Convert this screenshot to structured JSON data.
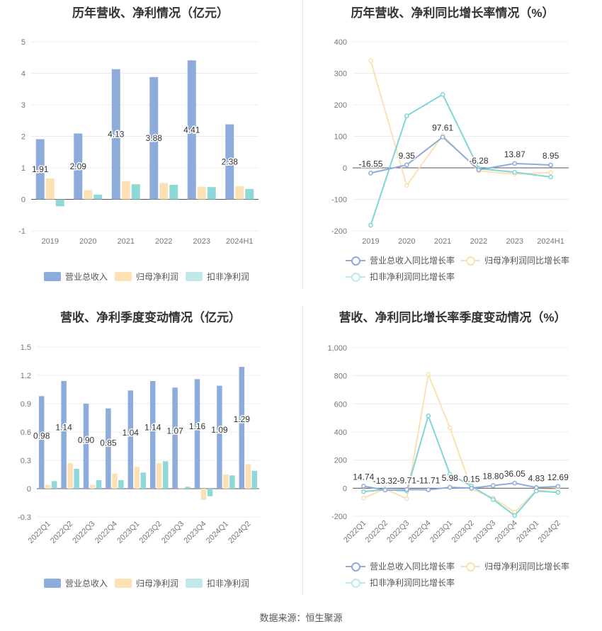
{
  "footer": {
    "source": "数据来源：恒生聚源"
  },
  "colors": {
    "revenue": "#8eacdb",
    "netprofit": "#fde0b3",
    "deducted": "#8fd8d8",
    "revenue_line": "#8eacdb",
    "netprofit_line": "#fde0b3",
    "deducted_line": "#7fd6d6"
  },
  "chart_data": [
    {
      "id": "annual_amount",
      "type": "bar",
      "title": "历年营收、净利情况（亿元）",
      "categories": [
        "2019",
        "2020",
        "2021",
        "2022",
        "2023",
        "2024H1"
      ],
      "ylim": [
        -1,
        5
      ],
      "yticks": [
        "-1",
        "0",
        "1",
        "2",
        "3",
        "4",
        "5"
      ],
      "series": [
        {
          "name": "营业总收入",
          "values": [
            1.91,
            2.09,
            4.13,
            3.88,
            4.41,
            2.38
          ],
          "labels": [
            "1.91",
            "2.09",
            "4.13",
            "3.88",
            "4.41",
            "2.38"
          ]
        },
        {
          "name": "归母净利润",
          "values": [
            0.66,
            0.29,
            0.58,
            0.52,
            0.4,
            0.42
          ]
        },
        {
          "name": "扣非净利润",
          "values": [
            -0.22,
            0.15,
            0.48,
            0.46,
            0.39,
            0.33
          ]
        }
      ],
      "legend": "bottom",
      "grid": true
    },
    {
      "id": "annual_growth",
      "type": "line",
      "title": "历年营收、净利同比增长率情况（%）",
      "categories": [
        "2019",
        "2020",
        "2021",
        "2022",
        "2023",
        "2024H1"
      ],
      "ylim": [
        -200,
        400
      ],
      "yticks": [
        "-200",
        "-100",
        "0",
        "100",
        "200",
        "300",
        "400"
      ],
      "series": [
        {
          "name": "营业总收入同比增长率",
          "values": [
            -16.55,
            9.35,
            97.61,
            -6.28,
            13.87,
            8.95
          ],
          "labels": [
            "-16.55",
            "9.35",
            "97.61",
            "-6.28",
            "13.87",
            "8.95"
          ]
        },
        {
          "name": "归母净利润同比增长率",
          "values": [
            340,
            -56,
            103,
            -10,
            -20,
            -15
          ]
        },
        {
          "name": "扣非净利润同比增长率",
          "values": [
            -182,
            165,
            233,
            -2,
            -14,
            -29
          ]
        }
      ],
      "legend": "bottom",
      "grid": true
    },
    {
      "id": "quarter_amount",
      "type": "bar",
      "title": "营收、净利季度变动情况（亿元）",
      "categories": [
        "2022Q1",
        "2022Q2",
        "2022Q3",
        "2022Q4",
        "2023Q1",
        "2023Q2",
        "2023Q3",
        "2023Q4",
        "2024Q1",
        "2024Q2"
      ],
      "ylim": [
        -0.3,
        1.5
      ],
      "yticks": [
        "-0.3",
        "0",
        "0.3",
        "0.6",
        "0.9",
        "1.2",
        "1.5"
      ],
      "series": [
        {
          "name": "营业总收入",
          "values": [
            0.98,
            1.14,
            0.9,
            0.85,
            1.04,
            1.14,
            1.07,
            1.16,
            1.09,
            1.29
          ],
          "labels": [
            "0.98",
            "1.14",
            "0.90",
            "0.85",
            "1.04",
            "1.14",
            "1.07",
            "1.16",
            "1.09",
            "1.29"
          ]
        },
        {
          "name": "归母净利润",
          "values": [
            0.04,
            0.27,
            0.04,
            0.16,
            0.23,
            0.27,
            0.01,
            -0.12,
            0.15,
            0.26
          ]
        },
        {
          "name": "扣非净利润",
          "values": [
            0.08,
            0.21,
            0.09,
            0.09,
            0.17,
            0.29,
            0.02,
            -0.08,
            0.14,
            0.19
          ]
        }
      ],
      "legend": "bottom",
      "grid": true
    },
    {
      "id": "quarter_growth",
      "type": "line",
      "title": "营收、净利同比增长率季度变动情况（%）",
      "categories": [
        "2022Q1",
        "2022Q2",
        "2022Q3",
        "2022Q4",
        "2023Q1",
        "2023Q2",
        "2023Q3",
        "2023Q4",
        "2024Q1",
        "2024Q2"
      ],
      "ylim": [
        -200,
        1000
      ],
      "yticks": [
        "-200",
        "0",
        "200",
        "400",
        "600",
        "800",
        "1,000"
      ],
      "series": [
        {
          "name": "营业总收入同比增长率",
          "values": [
            14.74,
            -13.32,
            -9.71,
            -11.71,
            5.98,
            0.15,
            18.8,
            36.05,
            4.83,
            12.69
          ],
          "labels": [
            "14.74",
            "-13.32",
            "-9.71",
            "-11.71",
            "5.98",
            "0.15",
            "18.80",
            "36.05",
            "4.83",
            "12.69"
          ]
        },
        {
          "name": "归母净利润同比增长率",
          "values": [
            -70,
            -5,
            -75,
            810,
            430,
            -5,
            -70,
            -170,
            -15,
            -5
          ]
        },
        {
          "name": "扣非净利润同比增长率",
          "values": [
            -25,
            -10,
            -20,
            515,
            100,
            15,
            -80,
            -195,
            -20,
            -30
          ]
        }
      ],
      "legend": "bottom",
      "grid": true
    }
  ]
}
